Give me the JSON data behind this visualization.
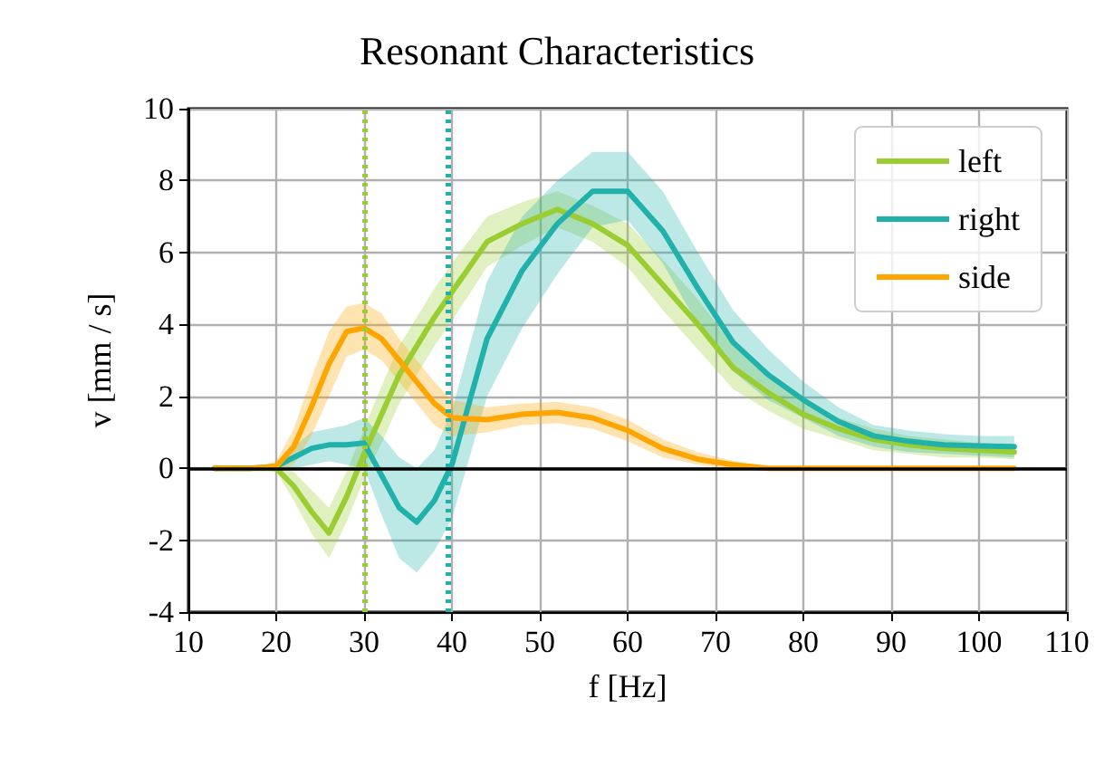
{
  "chart_data": {
    "type": "line",
    "title": "Resonant Characteristics",
    "xlabel": "f [Hz]",
    "ylabel": "v [mm / s]",
    "xlim": [
      10,
      110
    ],
    "xticks": [
      10,
      20,
      30,
      40,
      50,
      60,
      70,
      80,
      90,
      100,
      110
    ],
    "ylim": [
      -4,
      10
    ],
    "yticks": [
      -4,
      -2,
      0,
      2,
      4,
      6,
      8,
      10
    ],
    "grid": true,
    "legend": "top right",
    "line_style": "solid",
    "marker": "none",
    "series": [
      {
        "name": "left",
        "color": "#9acd32",
        "x": [
          13,
          17,
          20,
          22,
          24,
          26,
          28,
          30,
          32,
          34,
          36,
          38,
          40,
          44,
          48,
          52,
          56,
          60,
          64,
          68,
          72,
          76,
          80,
          84,
          88,
          92,
          96,
          100,
          104
        ],
        "values": [
          0,
          0,
          0,
          -0.5,
          -1.2,
          -1.8,
          -0.8,
          0.4,
          1.5,
          2.6,
          3.4,
          4.2,
          4.9,
          6.3,
          6.8,
          7.2,
          6.8,
          6.2,
          5.1,
          4.0,
          2.8,
          2.1,
          1.5,
          1.1,
          0.8,
          0.65,
          0.55,
          0.5,
          0.45
        ],
        "lower": [
          0,
          0,
          -0.1,
          -0.9,
          -1.8,
          -2.5,
          -1.5,
          -0.3,
          0.7,
          1.8,
          2.6,
          3.4,
          4.1,
          5.6,
          6.2,
          6.7,
          6.3,
          5.6,
          4.4,
          3.3,
          2.2,
          1.6,
          1.1,
          0.8,
          0.5,
          0.4,
          0.3,
          0.3,
          0.25
        ],
        "upper": [
          0,
          0,
          0.1,
          -0.1,
          -0.6,
          -1.1,
          -0.1,
          1.1,
          2.3,
          3.4,
          4.2,
          5.0,
          5.7,
          7.0,
          7.4,
          7.7,
          7.3,
          6.8,
          5.8,
          4.7,
          3.4,
          2.6,
          1.9,
          1.4,
          1.1,
          0.9,
          0.8,
          0.7,
          0.65
        ]
      },
      {
        "name": "right",
        "color": "#20b2aa",
        "x": [
          13,
          17,
          20,
          22,
          24,
          26,
          28,
          30,
          32,
          34,
          36,
          38,
          40,
          44,
          48,
          52,
          56,
          60,
          64,
          68,
          72,
          76,
          80,
          84,
          88,
          92,
          96,
          100,
          104
        ],
        "values": [
          0,
          0,
          0.05,
          0.3,
          0.55,
          0.65,
          0.65,
          0.7,
          -0.2,
          -1.1,
          -1.5,
          -0.9,
          0.1,
          3.6,
          5.5,
          6.8,
          7.7,
          7.7,
          6.6,
          5.0,
          3.5,
          2.6,
          1.9,
          1.3,
          0.9,
          0.75,
          0.65,
          0.62,
          0.6
        ],
        "lower": [
          0,
          0,
          -0.05,
          0,
          0.1,
          0.2,
          0.1,
          0,
          -1.3,
          -2.5,
          -2.9,
          -2.3,
          -1.4,
          2.0,
          3.9,
          5.4,
          6.7,
          6.9,
          5.7,
          4.0,
          2.7,
          1.9,
          1.4,
          0.9,
          0.6,
          0.45,
          0.4,
          0.35,
          0.3
        ],
        "upper": [
          0,
          0,
          0.15,
          0.6,
          1.0,
          1.1,
          1.2,
          1.4,
          0.9,
          0.3,
          0,
          0.5,
          1.6,
          5.2,
          7.0,
          8.0,
          8.8,
          8.8,
          7.7,
          6.0,
          4.4,
          3.3,
          2.4,
          1.7,
          1.2,
          1.05,
          0.95,
          0.9,
          0.9
        ]
      },
      {
        "name": "side",
        "color": "#ffa500",
        "x": [
          13,
          17,
          20,
          22,
          24,
          26,
          28,
          30,
          32,
          34,
          36,
          38,
          40,
          44,
          48,
          52,
          56,
          60,
          64,
          68,
          72,
          76,
          80,
          84,
          88,
          92,
          96,
          100,
          104
        ],
        "values": [
          0,
          0,
          0.05,
          0.6,
          1.7,
          2.9,
          3.8,
          3.9,
          3.6,
          3.0,
          2.4,
          1.8,
          1.4,
          1.35,
          1.5,
          1.55,
          1.4,
          1.05,
          0.55,
          0.25,
          0.1,
          0,
          0,
          0,
          0,
          0,
          0,
          0,
          0
        ],
        "lower": [
          -0.1,
          0,
          -0.1,
          0.1,
          0.9,
          2.0,
          3.1,
          3.3,
          3.0,
          2.4,
          1.8,
          1.2,
          0.9,
          1.0,
          1.2,
          1.25,
          1.1,
          0.75,
          0.3,
          0.1,
          0,
          0,
          0,
          0,
          0,
          0,
          0,
          0,
          0
        ],
        "upper": [
          0.1,
          0,
          0.2,
          1.1,
          2.5,
          3.8,
          4.5,
          4.6,
          4.3,
          3.6,
          3.0,
          2.4,
          1.9,
          1.7,
          1.8,
          1.85,
          1.7,
          1.35,
          0.8,
          0.45,
          0.2,
          0.05,
          0,
          0,
          0,
          0,
          0,
          0,
          0
        ]
      }
    ],
    "ref_lines": [
      {
        "axis": "x",
        "value": 30,
        "color": "#9acd32",
        "line_style": "dotted"
      },
      {
        "axis": "x",
        "value": 39.5,
        "color": "#20b2aa",
        "line_style": "dotted"
      },
      {
        "axis": "y",
        "value": 0,
        "color": "#000000",
        "line_style": "solid"
      }
    ]
  }
}
